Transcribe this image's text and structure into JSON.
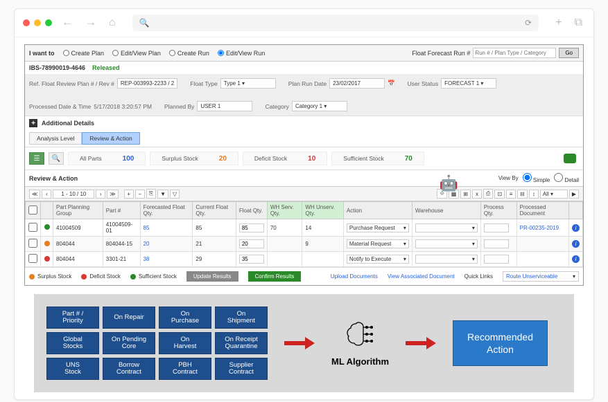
{
  "browser": {
    "search_ph": "🔍",
    "refresh": "⟳",
    "plus": "+",
    "tabs": "⧉"
  },
  "topbar": {
    "iwant": "I want to",
    "opts": [
      "Create Plan",
      "Edit/View Plan",
      "Create Run",
      "Edit/View Run"
    ],
    "selected": 3,
    "ffr_label": "Float Forecast Run #",
    "ffr_ph": "Run # / Plan Type / Category",
    "go": "Go"
  },
  "header": {
    "id": "IBS-78990019-4646",
    "status": "Released"
  },
  "fields": {
    "ref": {
      "lbl": "Ref. Float Review Plan # / Rev #",
      "val": "REP-003993-2233 / 2"
    },
    "ftype": {
      "lbl": "Float Type",
      "val": "Type 1"
    },
    "prd": {
      "lbl": "Plan Run Date",
      "val": "23/02/2017"
    },
    "ustat": {
      "lbl": "User Status",
      "val": "FORECAST 1"
    },
    "pdt": {
      "lbl": "Processed Date & Time",
      "val": "5/17/2018  3:20:57 PM"
    },
    "pby": {
      "lbl": "Planned By",
      "val": "USER 1"
    },
    "cat": {
      "lbl": "Category",
      "val": "Category 1"
    }
  },
  "additional": "Additional Details",
  "tabs": [
    "Analysis Level",
    "Review & Action"
  ],
  "stats": [
    {
      "lbl": "All Parts",
      "num": "100",
      "cls": "blue"
    },
    {
      "lbl": "Surplus Stock",
      "num": "20",
      "cls": "orange"
    },
    {
      "lbl": "Deficit Stock",
      "num": "10",
      "cls": "red"
    },
    {
      "lbl": "Sufficient Stock",
      "num": "70",
      "cls": "green"
    }
  ],
  "section": "Review & Action",
  "viewby": {
    "lbl": "View By",
    "opts": [
      "Simple",
      "Detail"
    ],
    "sel": 0
  },
  "pager": "1 - 10 / 10",
  "all": "All",
  "cols": [
    "Part Planning Group",
    "Part #",
    "Forecasted Float Qty.",
    "Current Float Qty.",
    "Float Qty.",
    "WH Serv. Qty.",
    "WH Unserv. Qty.",
    "Action",
    "Warehouse",
    "Process Qty.",
    "Processed Document"
  ],
  "rows": [
    {
      "dot": "dg",
      "ppg": "41004509",
      "part": "41004509-01",
      "fq": "85",
      "cq": "85",
      "fl": "85",
      "ws": "70",
      "wu": "14",
      "act": "Purchase Request",
      "wh": "",
      "pq": "",
      "pd": "PR-00235-2019"
    },
    {
      "dot": "do",
      "ppg": "804044",
      "part": "804044-15",
      "fq": "20",
      "cq": "21",
      "fl": "20",
      "ws": "",
      "wu": "9",
      "act": "Material Request",
      "wh": "",
      "pq": "",
      "pd": ""
    },
    {
      "dot": "dr",
      "ppg": "804044",
      "part": "3301-21",
      "fq": "38",
      "cq": "29",
      "fl": "35",
      "ws": "",
      "wu": "",
      "act": "Notify to Execute",
      "wh": "",
      "pq": "",
      "pd": ""
    }
  ],
  "legend": {
    "surplus": "Surplus Stock",
    "deficit": "Deficit Stock",
    "sufficient": "Sufficient Stock",
    "update": "Update Results",
    "confirm": "Confirm Results",
    "upload": "Upload Documents",
    "viewdoc": "View Associated Document",
    "ql": "Quick Links",
    "qlv": "Route Unserviceable"
  },
  "info": {
    "boxes": [
      "Part # / Priority",
      "On Repair",
      "On Purchase",
      "On Shipment",
      "Global Stocks",
      "On Pending Core",
      "On Harvest",
      "On Receipt Quarantine",
      "UNS Stock",
      "Borrow Contract",
      "PBH Contract",
      "Supplier Contract"
    ],
    "ml": "ML Algorithm",
    "rec": "Recommended Action"
  }
}
